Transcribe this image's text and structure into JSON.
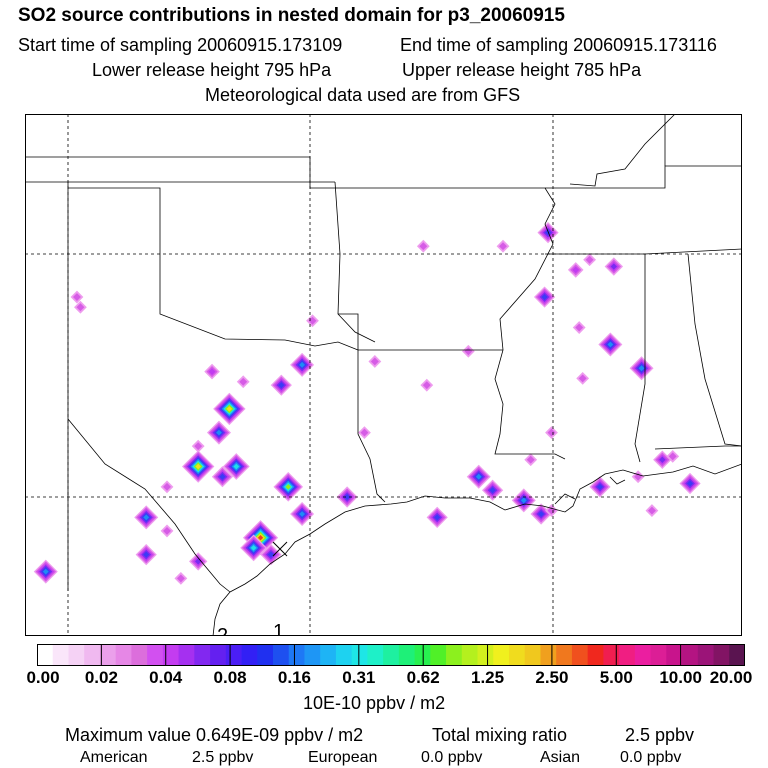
{
  "header": {
    "title": "SO2 source contributions in nested domain for p3_20060915",
    "start_time": "Start time of sampling 20060915.173109",
    "end_time": "End time of sampling 20060915.173116",
    "lower_height": "Lower release height  795 hPa",
    "upper_height": "Upper release height  785 hPa",
    "met_data": "Meteorological data used are from GFS"
  },
  "map": {
    "labels": [
      "2",
      "1"
    ],
    "concentration_spots": [
      {
        "lon": -101.5,
        "lat": 34.0,
        "level": 1
      },
      {
        "lon": -101.4,
        "lat": 33.7,
        "level": 1
      },
      {
        "lon": -91.5,
        "lat": 35.5,
        "level": 1
      },
      {
        "lon": -89.2,
        "lat": 35.5,
        "level": 1
      },
      {
        "lon": -87.9,
        "lat": 35.9,
        "level": 4
      },
      {
        "lon": -86.7,
        "lat": 35.1,
        "level": 1
      },
      {
        "lon": -88.0,
        "lat": 34.0,
        "level": 4
      },
      {
        "lon": -86.0,
        "lat": 34.9,
        "level": 3
      },
      {
        "lon": -87.1,
        "lat": 34.8,
        "level": 2
      },
      {
        "lon": -87.0,
        "lat": 33.1,
        "level": 1
      },
      {
        "lon": -86.1,
        "lat": 32.6,
        "level": 5
      },
      {
        "lon": -86.9,
        "lat": 31.6,
        "level": 1
      },
      {
        "lon": -85.2,
        "lat": 31.9,
        "level": 5
      },
      {
        "lon": -90.2,
        "lat": 32.4,
        "level": 1
      },
      {
        "lon": -92.9,
        "lat": 32.1,
        "level": 1
      },
      {
        "lon": -94.7,
        "lat": 33.3,
        "level": 1
      },
      {
        "lon": -93.2,
        "lat": 30.0,
        "level": 1
      },
      {
        "lon": -91.4,
        "lat": 31.4,
        "level": 1
      },
      {
        "lon": -87.8,
        "lat": 30.0,
        "level": 1
      },
      {
        "lon": -95.0,
        "lat": 32.0,
        "level": 5
      },
      {
        "lon": -97.6,
        "lat": 31.8,
        "level": 2
      },
      {
        "lon": -96.7,
        "lat": 31.5,
        "level": 1
      },
      {
        "lon": -95.6,
        "lat": 31.4,
        "level": 4
      },
      {
        "lon": -98.0,
        "lat": 29.6,
        "level": 1
      },
      {
        "lon": -97.1,
        "lat": 30.7,
        "level": 8
      },
      {
        "lon": -97.4,
        "lat": 30.0,
        "level": 5
      },
      {
        "lon": -98.0,
        "lat": 29.0,
        "level": 8
      },
      {
        "lon": -96.9,
        "lat": 29.0,
        "level": 6
      },
      {
        "lon": -97.3,
        "lat": 28.7,
        "level": 4
      },
      {
        "lon": -98.9,
        "lat": 28.4,
        "level": 1
      },
      {
        "lon": -99.5,
        "lat": 27.5,
        "level": 5
      },
      {
        "lon": -98.9,
        "lat": 27.1,
        "level": 1
      },
      {
        "lon": -99.5,
        "lat": 26.4,
        "level": 4
      },
      {
        "lon": -98.0,
        "lat": 26.2,
        "level": 3
      },
      {
        "lon": -98.5,
        "lat": 25.7,
        "level": 1
      },
      {
        "lon": -102.4,
        "lat": 25.9,
        "level": 5
      },
      {
        "lon": -95.4,
        "lat": 28.4,
        "level": 7
      },
      {
        "lon": -95.0,
        "lat": 27.6,
        "level": 5
      },
      {
        "lon": -96.2,
        "lat": 26.9,
        "level": 9
      },
      {
        "lon": -96.4,
        "lat": 26.6,
        "level": 6
      },
      {
        "lon": -95.9,
        "lat": 26.4,
        "level": 4
      },
      {
        "lon": -93.7,
        "lat": 28.1,
        "level": 4
      },
      {
        "lon": -91.1,
        "lat": 27.5,
        "level": 4
      },
      {
        "lon": -89.9,
        "lat": 28.7,
        "level": 5
      },
      {
        "lon": -89.5,
        "lat": 28.3,
        "level": 4
      },
      {
        "lon": -88.6,
        "lat": 28.0,
        "level": 5
      },
      {
        "lon": -88.1,
        "lat": 27.6,
        "level": 4
      },
      {
        "lon": -87.8,
        "lat": 27.7,
        "level": 1
      },
      {
        "lon": -86.4,
        "lat": 28.4,
        "level": 4
      },
      {
        "lon": -85.3,
        "lat": 28.7,
        "level": 1
      },
      {
        "lon": -84.6,
        "lat": 29.2,
        "level": 3
      },
      {
        "lon": -84.3,
        "lat": 29.3,
        "level": 1
      },
      {
        "lon": -83.8,
        "lat": 28.5,
        "level": 4
      },
      {
        "lon": -88.4,
        "lat": 29.2,
        "level": 1
      },
      {
        "lon": -84.9,
        "lat": 27.7,
        "level": 1
      }
    ]
  },
  "colorbar": {
    "colors": [
      "#ffffff",
      "#fae6fa",
      "#f5d2f5",
      "#f0b9f0",
      "#eba0eb",
      "#e687e6",
      "#dc6edc",
      "#d250f0",
      "#c33cf0",
      "#a530f0",
      "#8228f0",
      "#6420f0",
      "#4b1ef5",
      "#3220f5",
      "#2030f0",
      "#1e50f0",
      "#1e78f5",
      "#1e96f5",
      "#1eb4f5",
      "#1ed2f0",
      "#1ee6e6",
      "#1ef0c8",
      "#1ef0a0",
      "#1ef078",
      "#28f050",
      "#50f028",
      "#8cf01e",
      "#b4f01e",
      "#d2f01e",
      "#f0f01e",
      "#f0dc1e",
      "#f0c81e",
      "#f0a01e",
      "#f0781e",
      "#f0501e",
      "#f0281e",
      "#f01e50",
      "#f01e82",
      "#eb1ea0",
      "#dc1e96",
      "#c8148c",
      "#b41482",
      "#9b1478",
      "#821464",
      "#5a1450"
    ],
    "ticks": [
      "0.00",
      "0.02",
      "0.04",
      "0.08",
      "0.16",
      "0.31",
      "0.62",
      "1.25",
      "2.50",
      "5.00",
      "10.00",
      "20.00"
    ],
    "units": "10E-10 ppbv / m2"
  },
  "summary": {
    "max_value": "Maximum value  0.649E-09 ppbv / m2",
    "total_mixing_label": "Total mixing ratio",
    "total_mixing_value": "2.5 ppbv",
    "american_label": "American",
    "american_value": "2.5 ppbv",
    "european_label": "European",
    "european_value": "0.0 ppbv",
    "asian_label": "Asian",
    "asian_value": "0.0 ppbv"
  }
}
